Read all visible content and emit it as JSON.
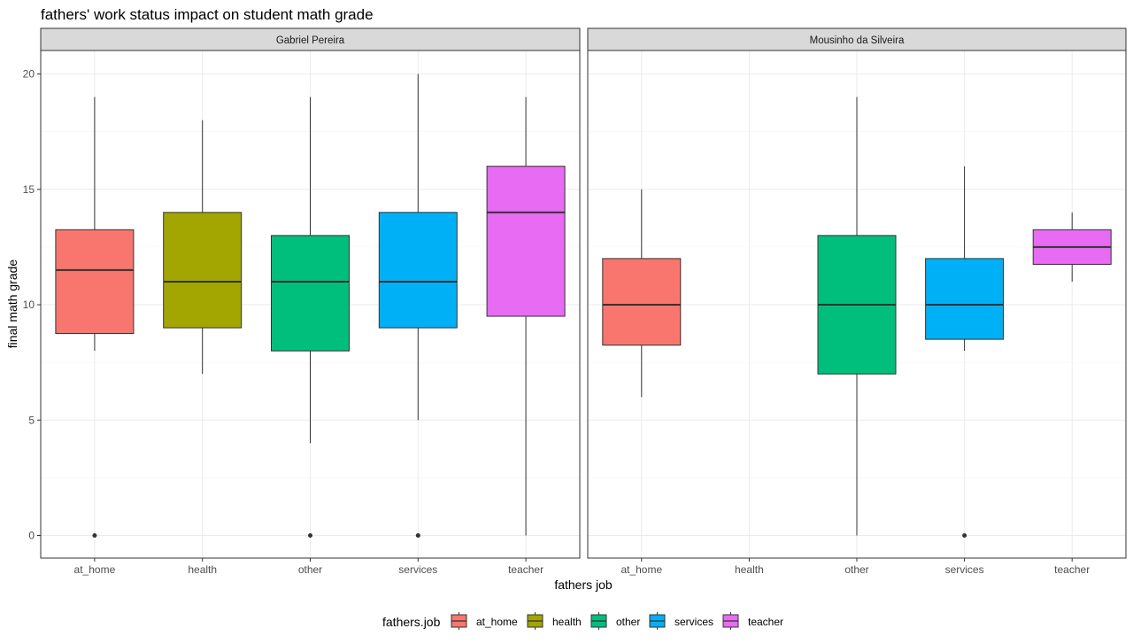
{
  "chart_data": {
    "type": "boxplot",
    "title": "fathers' work status impact on student math grade",
    "xlabel": "fathers job",
    "ylabel": "final math grade",
    "ylim": [
      -1,
      21
    ],
    "yticks": [
      0,
      5,
      10,
      15,
      20
    ],
    "categories": [
      "at_home",
      "health",
      "other",
      "services",
      "teacher"
    ],
    "grid": true,
    "legend": {
      "title": "fathers.job",
      "position": "bottom",
      "entries": [
        "at_home",
        "health",
        "other",
        "services",
        "teacher"
      ]
    },
    "colors": {
      "at_home": "#F8766D",
      "health": "#A3A500",
      "other": "#00BF7D",
      "services": "#00B0F6",
      "teacher": "#E76BF3"
    },
    "facets": [
      {
        "name": "Gabriel Pereira",
        "boxes": [
          {
            "category": "at_home",
            "whisker_low": 8,
            "q1": 8.75,
            "median": 11.5,
            "q3": 13.25,
            "whisker_high": 19,
            "outliers": [
              0
            ]
          },
          {
            "category": "health",
            "whisker_low": 7,
            "q1": 9,
            "median": 11,
            "q3": 14,
            "whisker_high": 18,
            "outliers": []
          },
          {
            "category": "other",
            "whisker_low": 4,
            "q1": 8,
            "median": 11,
            "q3": 13,
            "whisker_high": 19,
            "outliers": [
              0
            ]
          },
          {
            "category": "services",
            "whisker_low": 5,
            "q1": 9,
            "median": 11,
            "q3": 14,
            "whisker_high": 20,
            "outliers": [
              0
            ]
          },
          {
            "category": "teacher",
            "whisker_low": 0,
            "q1": 9.5,
            "median": 14,
            "q3": 16,
            "whisker_high": 19,
            "outliers": []
          }
        ]
      },
      {
        "name": "Mousinho da Silveira",
        "boxes": [
          {
            "category": "at_home",
            "whisker_low": 6,
            "q1": 8.25,
            "median": 10,
            "q3": 12,
            "whisker_high": 15,
            "outliers": []
          },
          {
            "category": "other",
            "whisker_low": 0,
            "q1": 7,
            "median": 10,
            "q3": 13,
            "whisker_high": 19,
            "outliers": []
          },
          {
            "category": "services",
            "whisker_low": 8,
            "q1": 8.5,
            "median": 10,
            "q3": 12,
            "whisker_high": 16,
            "outliers": [
              0
            ]
          },
          {
            "category": "teacher",
            "whisker_low": 11,
            "q1": 11.75,
            "median": 12.5,
            "q3": 13.25,
            "whisker_high": 14,
            "outliers": []
          }
        ]
      }
    ]
  }
}
